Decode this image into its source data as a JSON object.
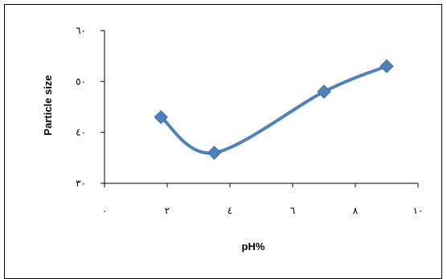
{
  "chart_data": {
    "type": "line",
    "xlabel": "pH%",
    "ylabel": "Particle size",
    "xlim": [
      0,
      10
    ],
    "ylim": [
      30,
      60
    ],
    "x_ticks": [
      0,
      2,
      4,
      6,
      8,
      10
    ],
    "y_ticks": [
      30,
      40,
      50,
      60
    ],
    "x_tick_labels": [
      "٠",
      "٢",
      "٤",
      "٦",
      "٨",
      "١٠"
    ],
    "y_tick_labels": [
      "٣٠",
      "٤٠",
      "٥٠",
      "٦٠"
    ],
    "grid": false,
    "legend": "none",
    "smooth": true,
    "series": [
      {
        "color": "#4F81BD",
        "marker": "diamond",
        "x": [
          1.8,
          3.5,
          7.0,
          9.0
        ],
        "y": [
          43.0,
          36.0,
          48.0,
          53.0
        ]
      }
    ]
  }
}
